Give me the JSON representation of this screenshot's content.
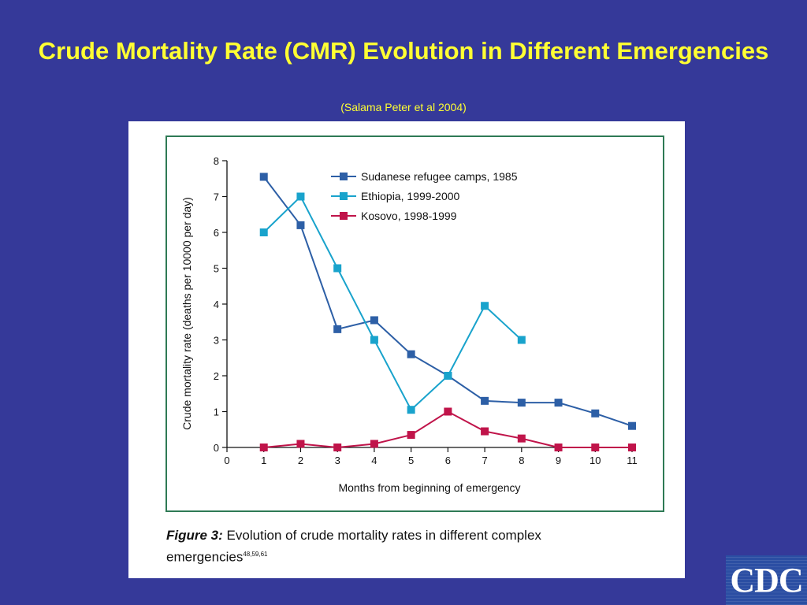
{
  "slide": {
    "title": "Crude Mortality Rate (CMR) Evolution in Different Emergencies",
    "subtitle": "(Salama Peter et al 2004)"
  },
  "caption": {
    "label": "Figure 3:",
    "text": " Evolution of crude mortality rates in different complex emergencies",
    "superscript": "48,59,61"
  },
  "logo": {
    "text": "CDC"
  },
  "colors": {
    "background": "#353999",
    "title": "#ffff33",
    "frame": "#2e7a55",
    "sudanese": "#2d5fa6",
    "ethiopia": "#19a3cc",
    "kosovo": "#c0144a"
  },
  "chart_data": {
    "type": "line",
    "xlabel": "Months from beginning of emergency",
    "ylabel": "Crude mortality rate (deaths per 10000 per day)",
    "xlim": [
      0,
      11
    ],
    "ylim": [
      0,
      8
    ],
    "xticks": [
      0,
      1,
      2,
      3,
      4,
      5,
      6,
      7,
      8,
      9,
      10,
      11
    ],
    "yticks": [
      0,
      1,
      2,
      3,
      4,
      5,
      6,
      7,
      8
    ],
    "legend_position": "top-right",
    "grid": false,
    "series": [
      {
        "name": "Sudanese refugee camps, 1985",
        "color": "#2d5fa6",
        "x": [
          1,
          2,
          3,
          4,
          5,
          6,
          7,
          8,
          9,
          10,
          11
        ],
        "y": [
          7.55,
          6.2,
          3.3,
          3.55,
          2.6,
          2.0,
          1.3,
          1.25,
          1.25,
          0.95,
          0.6
        ]
      },
      {
        "name": "Ethiopia, 1999-2000",
        "color": "#19a3cc",
        "x": [
          1,
          2,
          3,
          4,
          5,
          6,
          7,
          8
        ],
        "y": [
          6.0,
          7.0,
          5.0,
          3.0,
          1.05,
          2.0,
          3.95,
          3.0
        ]
      },
      {
        "name": "Kosovo, 1998-1999",
        "color": "#c0144a",
        "x": [
          1,
          2,
          3,
          4,
          5,
          6,
          7,
          8,
          9,
          10,
          11
        ],
        "y": [
          0.0,
          0.1,
          0.0,
          0.1,
          0.35,
          1.0,
          0.45,
          0.25,
          0.0,
          0.0,
          0.0
        ]
      }
    ]
  }
}
